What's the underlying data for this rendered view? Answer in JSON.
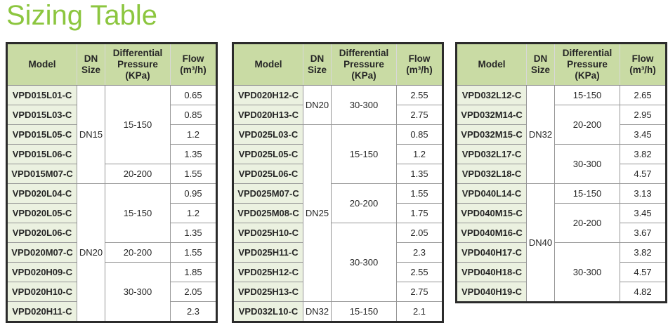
{
  "page": {
    "title": "Sizing Table",
    "colors": {
      "title_green": "#8CC63F",
      "header_bg": "#C9DBA4",
      "model_cell_bg": "#EBF1E0",
      "outer_border": "#2B2B2B",
      "grid_line": "#969696",
      "text": "#262626"
    }
  },
  "columns": [
    "Model",
    "DN Size",
    "Differential Pressure (KPa)",
    "Flow (m³/h)"
  ],
  "tables": [
    {
      "rows": [
        {
          "model": "VPD015L01-C",
          "dn": "DN15",
          "dn_span": 5,
          "dp": "15-150",
          "dp_span": 4,
          "flow": "0.65"
        },
        {
          "model": "VPD015L03-C",
          "flow": "0.85"
        },
        {
          "model": "VPD015L05-C",
          "flow": "1.2"
        },
        {
          "model": "VPD015L06-C",
          "flow": "1.35"
        },
        {
          "model": "VPD015M07-C",
          "dp": "20-200",
          "dp_span": 1,
          "flow": "1.55"
        },
        {
          "model": "VPD020L04-C",
          "dn": "DN20",
          "dn_span": 7,
          "dp": "15-150",
          "dp_span": 3,
          "flow": "0.95"
        },
        {
          "model": "VPD020L05-C",
          "flow": "1.2"
        },
        {
          "model": "VPD020L06-C",
          "flow": "1.35"
        },
        {
          "model": "VPD020M07-C",
          "dp": "20-200",
          "dp_span": 1,
          "flow": "1.55"
        },
        {
          "model": "VPD020H09-C",
          "dp": "30-300",
          "dp_span": 3,
          "flow": "1.85"
        },
        {
          "model": "VPD020H10-C",
          "flow": "2.05"
        },
        {
          "model": "VPD020H11-C",
          "flow": "2.3"
        }
      ]
    },
    {
      "rows": [
        {
          "model": "VPD020H12-C",
          "dn": "DN20",
          "dn_span": 2,
          "dp": "30-300",
          "dp_span": 2,
          "flow": "2.55"
        },
        {
          "model": "VPD020H13-C",
          "flow": "2.75"
        },
        {
          "model": "VPD025L03-C",
          "dn": "DN25",
          "dn_span": 9,
          "dp": "15-150",
          "dp_span": 3,
          "flow": "0.85"
        },
        {
          "model": "VPD025L05-C",
          "flow": "1.2"
        },
        {
          "model": "VPD025L06-C",
          "flow": "1.35"
        },
        {
          "model": "VPD025M07-C",
          "dp": "20-200",
          "dp_span": 2,
          "flow": "1.55"
        },
        {
          "model": "VPD025M08-C",
          "flow": "1.75"
        },
        {
          "model": "VPD025H10-C",
          "dp": "30-300",
          "dp_span": 4,
          "flow": "2.05"
        },
        {
          "model": "VPD025H11-C",
          "flow": "2.3"
        },
        {
          "model": "VPD025H12-C",
          "flow": "2.55"
        },
        {
          "model": "VPD025H13-C",
          "flow": "2.75"
        },
        {
          "model": "VPD032L10-C",
          "dn": "DN32",
          "dn_span": 1,
          "dp": "15-150",
          "dp_span": 1,
          "flow": "2.1"
        }
      ]
    },
    {
      "rows": [
        {
          "model": "VPD032L12-C",
          "dn": "DN32",
          "dn_span": 5,
          "dp": "15-150",
          "dp_span": 1,
          "flow": "2.65"
        },
        {
          "model": "VPD032M14-C",
          "dp": "20-200",
          "dp_span": 2,
          "flow": "2.95"
        },
        {
          "model": "VPD032M15-C",
          "flow": "3.45"
        },
        {
          "model": "VPD032L17-C",
          "dp": "30-300",
          "dp_span": 2,
          "flow": "3.82"
        },
        {
          "model": "VPD032L18-C",
          "flow": "4.57"
        },
        {
          "model": "VPD040L14-C",
          "dn": "DN40",
          "dn_span": 6,
          "dp": "15-150",
          "dp_span": 1,
          "flow": "3.13"
        },
        {
          "model": "VPD040M15-C",
          "dp": "20-200",
          "dp_span": 2,
          "flow": "3.45"
        },
        {
          "model": "VPD040M16-C",
          "flow": "3.67"
        },
        {
          "model": "VPD040H17-C",
          "dp": "30-300",
          "dp_span": 3,
          "flow": "3.82"
        },
        {
          "model": "VPD040H18-C",
          "flow": "4.57"
        },
        {
          "model": "VPD040H19-C",
          "flow": "4.82"
        }
      ]
    }
  ]
}
